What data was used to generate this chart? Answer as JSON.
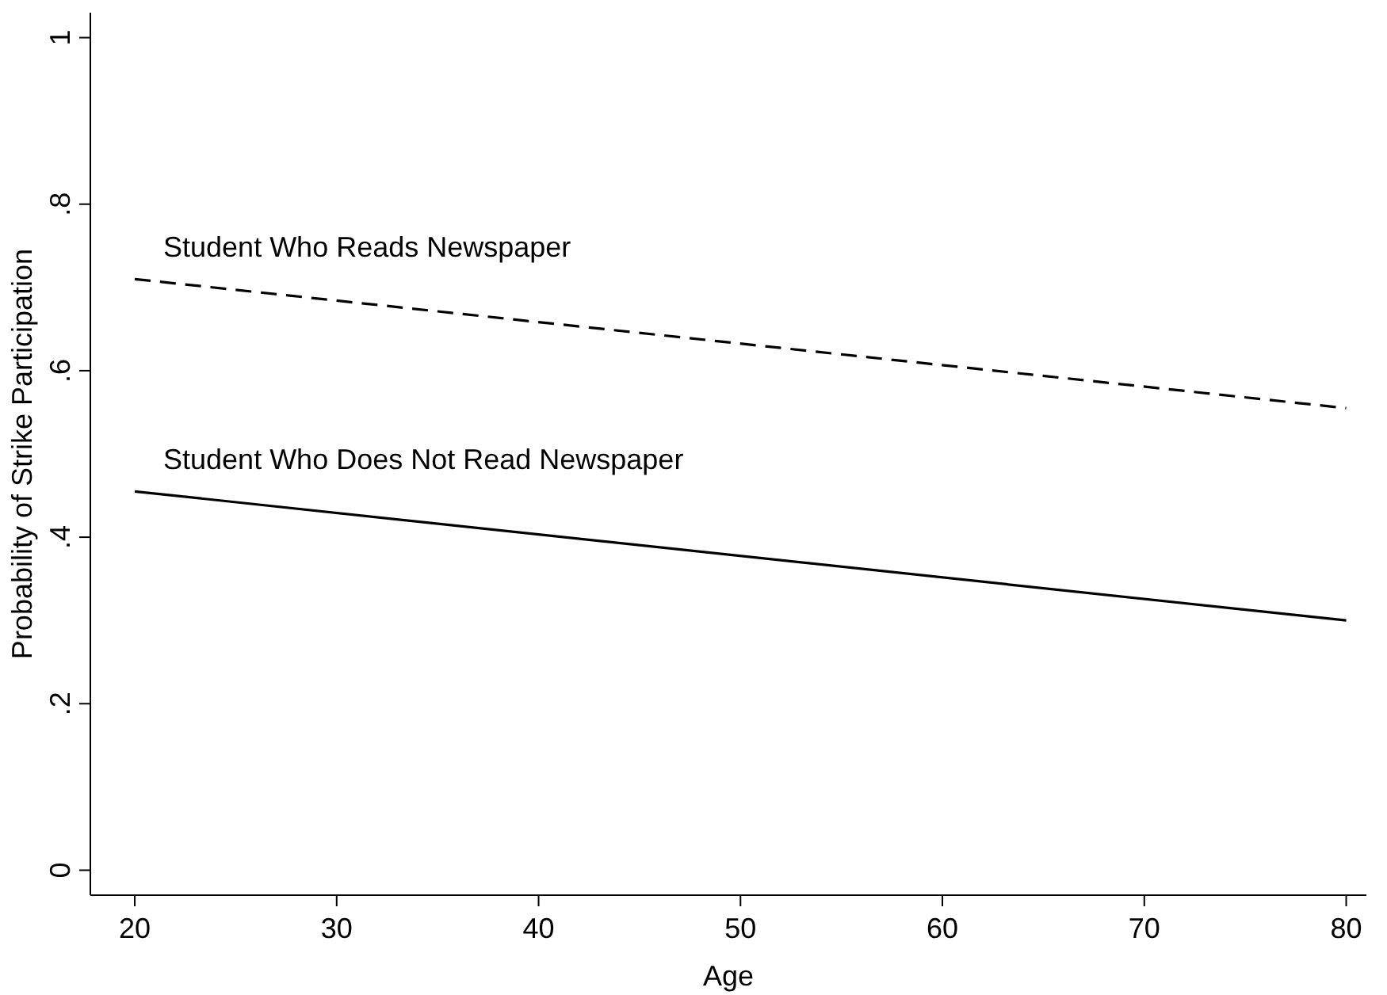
{
  "chart_data": {
    "type": "line",
    "xlabel": "Age",
    "ylabel": "Probability of Strike Participation",
    "x": [
      20,
      80
    ],
    "series": [
      {
        "name": "Student Who Reads Newspaper",
        "color": "#000000",
        "values": [
          0.71,
          0.555
        ],
        "line_style": "dashed"
      },
      {
        "name": "Student Who Does Not Read Newspaper",
        "color": "#000000",
        "values": [
          0.455,
          0.3
        ],
        "line_style": "solid"
      }
    ],
    "xlim": [
      17.8,
      81
    ],
    "ylim": [
      -0.03,
      1.03
    ],
    "xticks": [
      20,
      30,
      40,
      50,
      60,
      70,
      80
    ],
    "yticks": [
      0,
      {
        "value": 0.2,
        "label": ".2"
      },
      {
        "value": 0.4,
        "label": ".4"
      },
      {
        "value": 0.6,
        "label": ".6"
      },
      {
        "value": 0.8,
        "label": ".8"
      },
      1
    ],
    "grid": false,
    "marker": "none"
  }
}
